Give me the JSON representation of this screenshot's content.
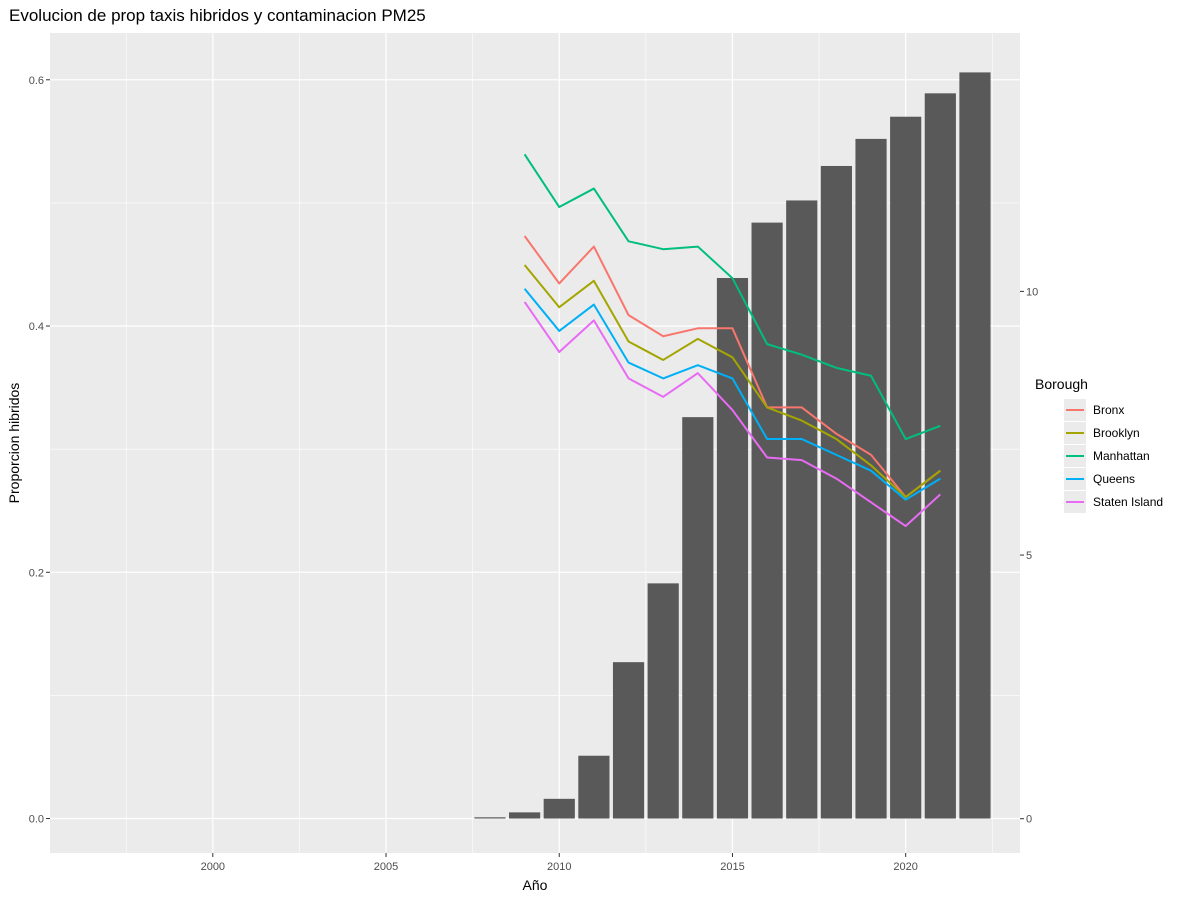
{
  "chart_data": {
    "type": "bar+line",
    "title": "Evolucion de prop taxis hibridos y contaminacion PM25",
    "xlabel": "Año",
    "ylabel": "Proporcion hibridos",
    "y2label": "",
    "xlim": [
      1995.3,
      2023.3
    ],
    "ylim": [
      -0.028,
      0.638
    ],
    "y2lim": [
      -0.65,
      14.9
    ],
    "x_ticks": [
      2000,
      2005,
      2010,
      2015,
      2020
    ],
    "y_ticks": [
      0.0,
      0.2,
      0.4,
      0.6
    ],
    "y_tick_labels": [
      "0.0",
      "0.2",
      "0.4",
      "0.6"
    ],
    "y2_ticks": [
      0,
      5,
      10
    ],
    "y2_tick_labels": [
      "0",
      "5",
      "10"
    ],
    "grid": true,
    "background": "#ebebeb",
    "bar_color": "#595959",
    "bars": {
      "x": [
        2008,
        2009,
        2010,
        2011,
        2012,
        2013,
        2014,
        2015,
        2016,
        2017,
        2018,
        2019,
        2020,
        2021,
        2022
      ],
      "values": [
        0.001,
        0.005,
        0.016,
        0.051,
        0.127,
        0.191,
        0.326,
        0.439,
        0.484,
        0.502,
        0.53,
        0.552,
        0.57,
        0.589,
        0.606
      ]
    },
    "legend": {
      "title": "Borough",
      "position": "right"
    },
    "x": [
      2009,
      2010,
      2011,
      2012,
      2013,
      2014,
      2015,
      2016,
      2017,
      2018,
      2019,
      2020,
      2021
    ],
    "series": [
      {
        "name": "Bronx",
        "color": "#F8766D",
        "axis": "y2",
        "values": [
          11.05,
          10.15,
          10.85,
          9.55,
          9.15,
          9.3,
          9.3,
          7.8,
          7.8,
          7.3,
          6.9,
          6.1,
          6.6
        ]
      },
      {
        "name": "Brooklyn",
        "color": "#A3A500",
        "axis": "y2",
        "values": [
          10.5,
          9.7,
          10.2,
          9.05,
          8.7,
          9.1,
          8.75,
          7.8,
          7.55,
          7.2,
          6.7,
          6.1,
          6.6
        ]
      },
      {
        "name": "Manhattan",
        "color": "#00BF7D",
        "axis": "y2",
        "values": [
          12.6,
          11.6,
          11.95,
          10.95,
          10.8,
          10.85,
          10.25,
          9.0,
          8.8,
          8.55,
          8.4,
          7.2,
          7.45
        ]
      },
      {
        "name": "Queens",
        "color": "#00B0F6",
        "axis": "y2",
        "values": [
          10.05,
          9.25,
          9.75,
          8.65,
          8.35,
          8.6,
          8.35,
          7.2,
          7.2,
          6.9,
          6.6,
          6.05,
          6.45
        ]
      },
      {
        "name": "Staten Island",
        "color": "#E76BF3",
        "axis": "y2",
        "values": [
          9.8,
          8.85,
          9.45,
          8.35,
          8.0,
          8.45,
          7.75,
          6.85,
          6.8,
          6.45,
          6.0,
          5.55,
          6.15
        ]
      }
    ]
  }
}
